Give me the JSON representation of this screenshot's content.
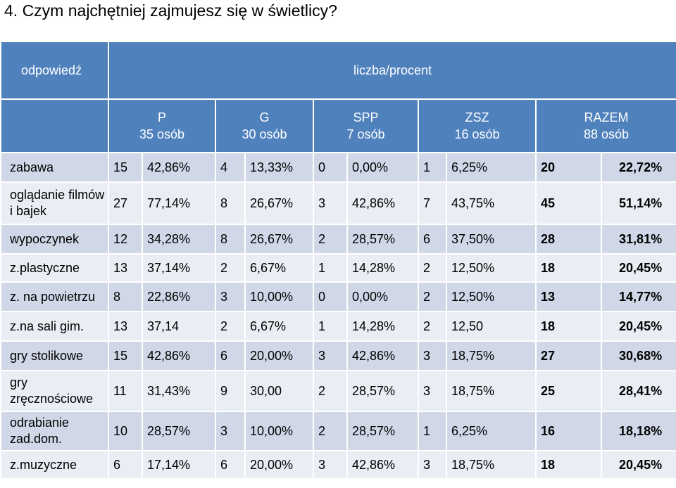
{
  "title": "4. Czym najchętniej zajmujesz się w świetlicy?",
  "header": {
    "answer_label": "odpowiedź",
    "count_label": "liczba/procent",
    "groups": [
      {
        "name": "P",
        "count": "35 osób"
      },
      {
        "name": "G",
        "count": "30 osób"
      },
      {
        "name": "SPP",
        "count": "7 osób"
      },
      {
        "name": "ZSZ",
        "count": "16 osób"
      },
      {
        "name": "RAZEM",
        "count": "88 osób"
      }
    ]
  },
  "rows": [
    {
      "label": "zabawa",
      "p_n": "15",
      "p_pct": "42,86%",
      "g_n": "4",
      "g_pct": "13,33%",
      "spp_n": "0",
      "spp_pct": "0,00%",
      "zsz_n": "1",
      "zsz_pct": "6,25%",
      "total_n": "20",
      "total_pct": "22,72%"
    },
    {
      "label": "oglądanie filmów i bajek",
      "p_n": "27",
      "p_pct": "77,14%",
      "g_n": "8",
      "g_pct": "26,67%",
      "spp_n": "3",
      "spp_pct": "42,86%",
      "zsz_n": "7",
      "zsz_pct": "43,75%",
      "total_n": "45",
      "total_pct": "51,14%"
    },
    {
      "label": "wypoczynek",
      "p_n": "12",
      "p_pct": "34,28%",
      "g_n": "8",
      "g_pct": "26,67%",
      "spp_n": "2",
      "spp_pct": "28,57%",
      "zsz_n": "6",
      "zsz_pct": "37,50%",
      "total_n": "28",
      "total_pct": "31,81%"
    },
    {
      "label": "z.plastyczne",
      "p_n": "13",
      "p_pct": "37,14%",
      "g_n": "2",
      "g_pct": "6,67%",
      "spp_n": "1",
      "spp_pct": "14,28%",
      "zsz_n": "2",
      "zsz_pct": "12,50%",
      "total_n": "18",
      "total_pct": "20,45%"
    },
    {
      "label": "z. na powietrzu",
      "p_n": "8",
      "p_pct": "22,86%",
      "g_n": "3",
      "g_pct": "10,00%",
      "spp_n": "0",
      "spp_pct": "0,00%",
      "zsz_n": "2",
      "zsz_pct": "12,50%",
      "total_n": "13",
      "total_pct": "14,77%"
    },
    {
      "label": "z.na sali gim.",
      "p_n": "13",
      "p_pct": "37,14",
      "g_n": "2",
      "g_pct": "6,67%",
      "spp_n": "1",
      "spp_pct": "14,28%",
      "zsz_n": "2",
      "zsz_pct": "12,50",
      "total_n": "18",
      "total_pct": "20,45%"
    },
    {
      "label": "gry stolikowe",
      "p_n": "15",
      "p_pct": "42,86%",
      "g_n": "6",
      "g_pct": "20,00%",
      "spp_n": "3",
      "spp_pct": "42,86%",
      "zsz_n": "3",
      "zsz_pct": "18,75%",
      "total_n": "27",
      "total_pct": "30,68%"
    },
    {
      "label": "gry zręcznościowe",
      "p_n": "11",
      "p_pct": "31,43%",
      "g_n": "9",
      "g_pct": "30,00",
      "spp_n": "2",
      "spp_pct": "28,57%",
      "zsz_n": "3",
      "zsz_pct": "18,75%",
      "total_n": "25",
      "total_pct": "28,41%"
    },
    {
      "label": "odrabianie zad.dom.",
      "p_n": "10",
      "p_pct": "28,57%",
      "g_n": "3",
      "g_pct": "10,00%",
      "spp_n": "2",
      "spp_pct": "28,57%",
      "zsz_n": "1",
      "zsz_pct": "6,25%",
      "total_n": "16",
      "total_pct": "18,18%"
    },
    {
      "label": "z.muzyczne",
      "p_n": "6",
      "p_pct": "17,14%",
      "g_n": "6",
      "g_pct": "20,00%",
      "spp_n": "3",
      "spp_pct": "42,86%",
      "zsz_n": "3",
      "zsz_pct": "18,75%",
      "total_n": "18",
      "total_pct": "20,45%"
    }
  ],
  "colors": {
    "header_bg": "#4f81bd",
    "row_dark": "#d0d8e8",
    "row_light": "#e9edf4",
    "percent_text": "#c00000"
  }
}
